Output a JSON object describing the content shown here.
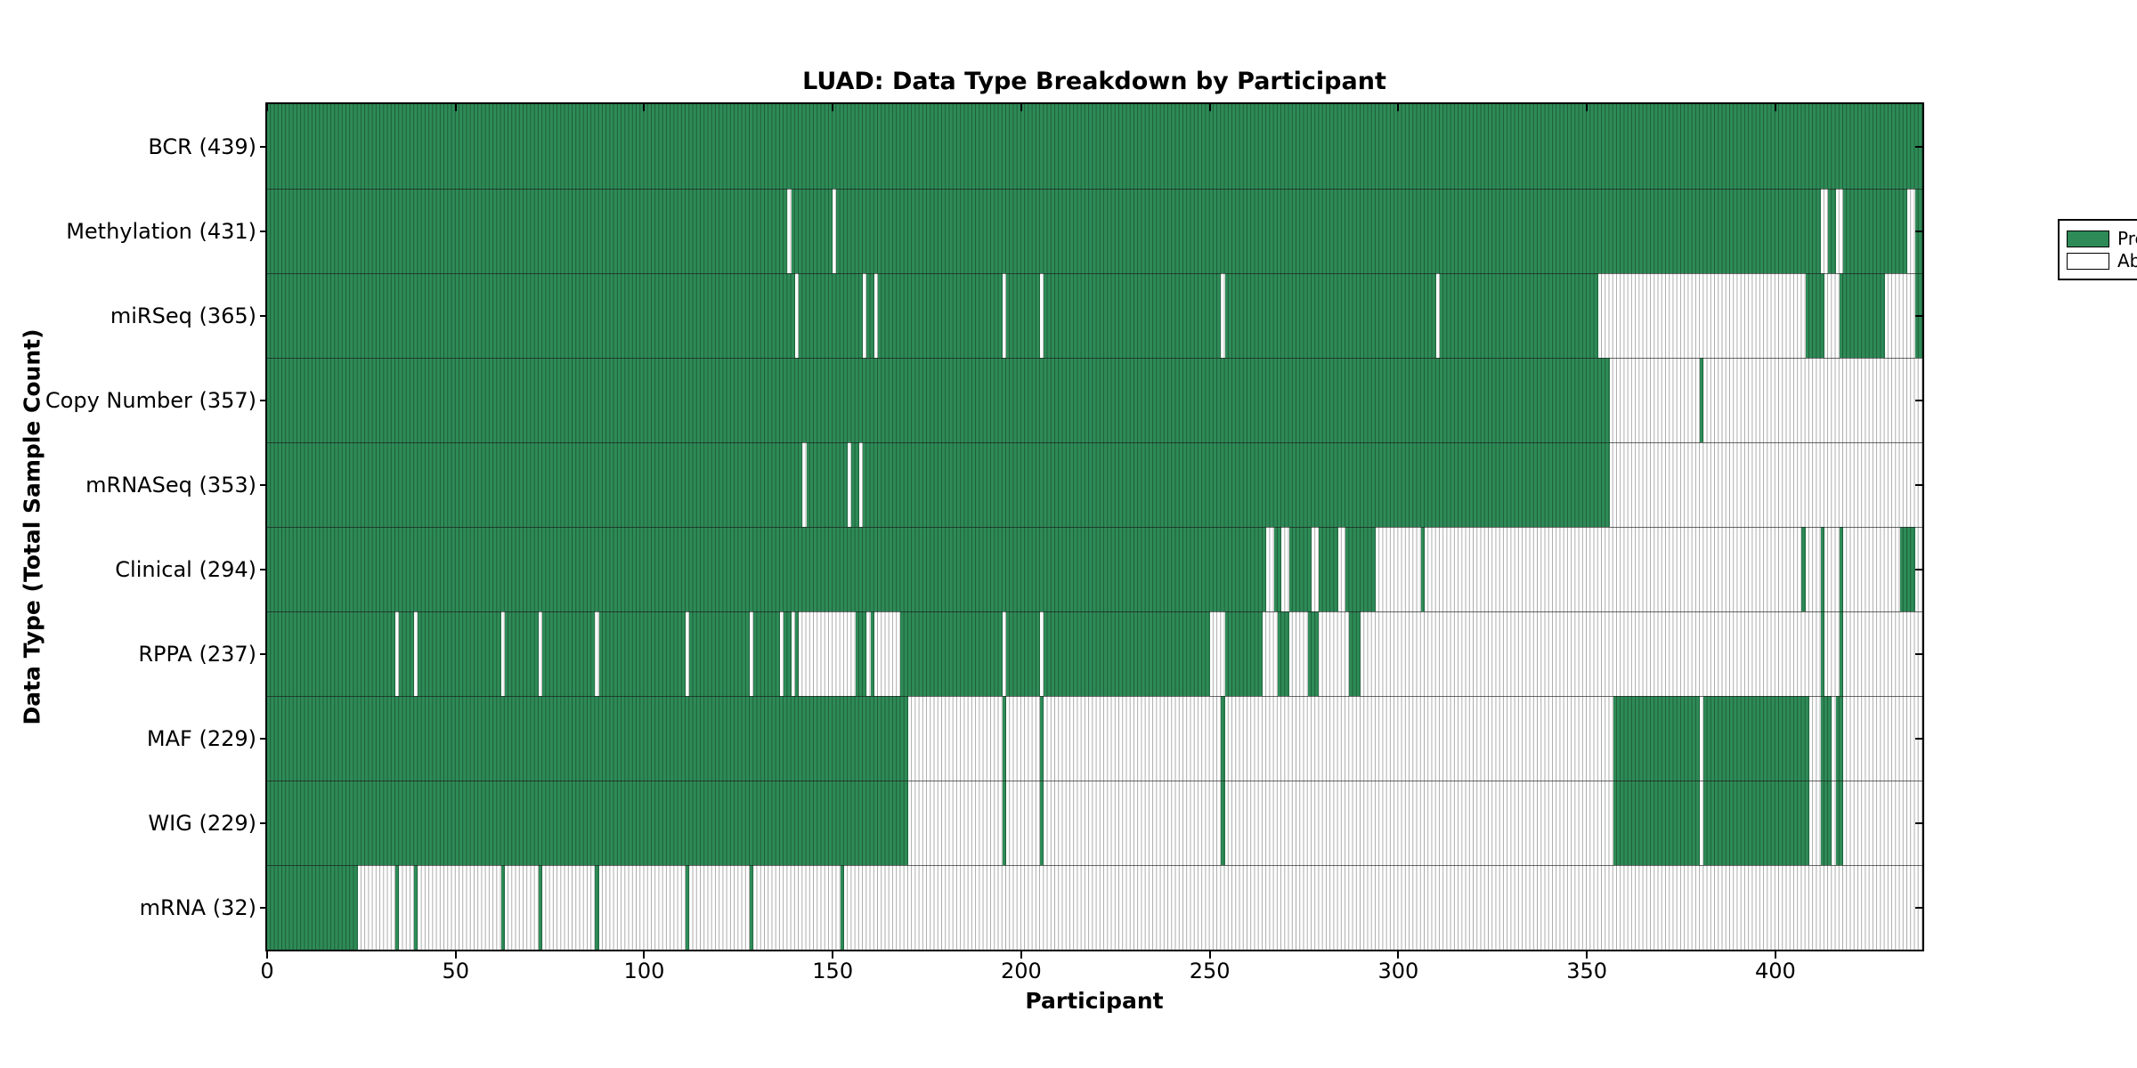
{
  "chart_data": {
    "type": "heatmap",
    "title": "LUAD: Data Type Breakdown by Participant",
    "xlabel": "Participant",
    "ylabel": "Data Type (Total Sample Count)",
    "x_axis": {
      "ticks": [
        0,
        50,
        100,
        150,
        200,
        250,
        300,
        350,
        400
      ],
      "min": 0,
      "max": 439
    },
    "grid": "off",
    "legend_position": "upper right",
    "legend": {
      "items": [
        {
          "label": "Present",
          "swatch_color": "#2e8b57"
        },
        {
          "label": "Absent",
          "swatch_color": "#ffffff"
        }
      ]
    },
    "colors": {
      "present_fill": "#2e8b57",
      "present_edge": "#1f5e3d",
      "absent_fill": "#ffffff",
      "absent_edge": "#ababab",
      "row_separator": "#2a2a2a",
      "frame": "#000000"
    },
    "n_participants": 439,
    "rows": [
      {
        "label": "BCR (439)",
        "name": "BCR",
        "count": 439,
        "present_ranges": [
          [
            0,
            439
          ]
        ]
      },
      {
        "label": "Methylation (431)",
        "name": "Methylation",
        "count": 431,
        "present_ranges": [
          [
            0,
            138
          ],
          [
            139,
            150
          ],
          [
            151,
            412
          ],
          [
            414,
            416
          ],
          [
            418,
            435
          ],
          [
            437,
            439
          ]
        ]
      },
      {
        "label": "miRSeq (365)",
        "name": "miRSeq",
        "count": 365,
        "present_ranges": [
          [
            0,
            140
          ],
          [
            141,
            158
          ],
          [
            159,
            161
          ],
          [
            162,
            195
          ],
          [
            196,
            205
          ],
          [
            206,
            253
          ],
          [
            254,
            310
          ],
          [
            311,
            353
          ],
          [
            408,
            413
          ],
          [
            417,
            429
          ],
          [
            437,
            439
          ]
        ]
      },
      {
        "label": "Copy Number (357)",
        "name": "Copy Number",
        "count": 357,
        "present_ranges": [
          [
            0,
            356
          ],
          [
            380,
            381
          ]
        ]
      },
      {
        "label": "mRNASeq (353)",
        "name": "mRNASeq",
        "count": 353,
        "present_ranges": [
          [
            0,
            142
          ],
          [
            143,
            154
          ],
          [
            155,
            157
          ],
          [
            158,
            356
          ]
        ]
      },
      {
        "label": "Clinical (294)",
        "name": "Clinical",
        "count": 294,
        "present_ranges": [
          [
            0,
            265
          ],
          [
            267,
            269
          ],
          [
            271,
            277
          ],
          [
            279,
            284
          ],
          [
            286,
            294
          ],
          [
            306,
            307
          ],
          [
            407,
            408
          ],
          [
            412,
            413
          ],
          [
            417,
            418
          ],
          [
            433,
            437
          ]
        ]
      },
      {
        "label": "RPPA (237)",
        "name": "RPPA",
        "count": 237,
        "present_ranges": [
          [
            0,
            34
          ],
          [
            35,
            39
          ],
          [
            40,
            62
          ],
          [
            63,
            72
          ],
          [
            73,
            87
          ],
          [
            88,
            111
          ],
          [
            112,
            128
          ],
          [
            129,
            136
          ],
          [
            137,
            139
          ],
          [
            140,
            141
          ],
          [
            156,
            159
          ],
          [
            160,
            161
          ],
          [
            168,
            195
          ],
          [
            196,
            205
          ],
          [
            206,
            250
          ],
          [
            254,
            264
          ],
          [
            268,
            271
          ],
          [
            276,
            279
          ],
          [
            287,
            290
          ],
          [
            412,
            413
          ],
          [
            417,
            418
          ]
        ]
      },
      {
        "label": "MAF (229)",
        "name": "MAF",
        "count": 229,
        "present_ranges": [
          [
            0,
            170
          ],
          [
            195,
            196
          ],
          [
            205,
            206
          ],
          [
            253,
            254
          ],
          [
            357,
            380
          ],
          [
            381,
            409
          ],
          [
            412,
            415
          ],
          [
            416,
            418
          ]
        ]
      },
      {
        "label": "WIG (229)",
        "name": "WIG",
        "count": 229,
        "present_ranges": [
          [
            0,
            170
          ],
          [
            195,
            196
          ],
          [
            205,
            206
          ],
          [
            253,
            254
          ],
          [
            357,
            380
          ],
          [
            381,
            409
          ],
          [
            412,
            415
          ],
          [
            416,
            418
          ]
        ]
      },
      {
        "label": "mRNA (32)",
        "name": "mRNA",
        "count": 32,
        "present_ranges": [
          [
            0,
            24
          ],
          [
            34,
            35
          ],
          [
            39,
            40
          ],
          [
            62,
            63
          ],
          [
            72,
            73
          ],
          [
            87,
            88
          ],
          [
            111,
            112
          ],
          [
            128,
            129
          ],
          [
            152,
            153
          ]
        ]
      }
    ]
  }
}
